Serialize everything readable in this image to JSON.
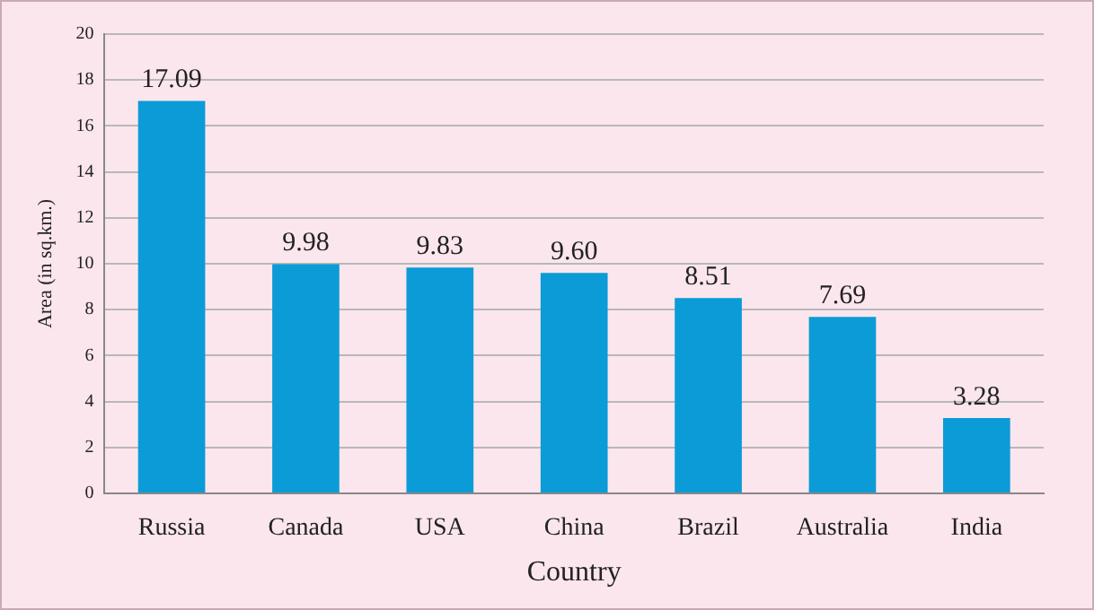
{
  "chart_data": {
    "type": "bar",
    "xlabel": "Country",
    "ylabel": "Area (in sq.km.)",
    "categories": [
      "Russia",
      "Canada",
      "USA",
      "China",
      "Brazil",
      "Australia",
      "India"
    ],
    "values": [
      17.09,
      9.98,
      9.83,
      9.6,
      8.51,
      7.69,
      3.28
    ],
    "value_labels": [
      "17.09",
      "9.98",
      "9.83",
      "9.60",
      "8.51",
      "7.69",
      "3.28"
    ],
    "color": "#0b9bd7",
    "ylim": [
      0,
      20
    ],
    "yticks": [
      0,
      2,
      4,
      6,
      8,
      10,
      12,
      14,
      16,
      18,
      20
    ],
    "grid": "y",
    "legend": false
  }
}
